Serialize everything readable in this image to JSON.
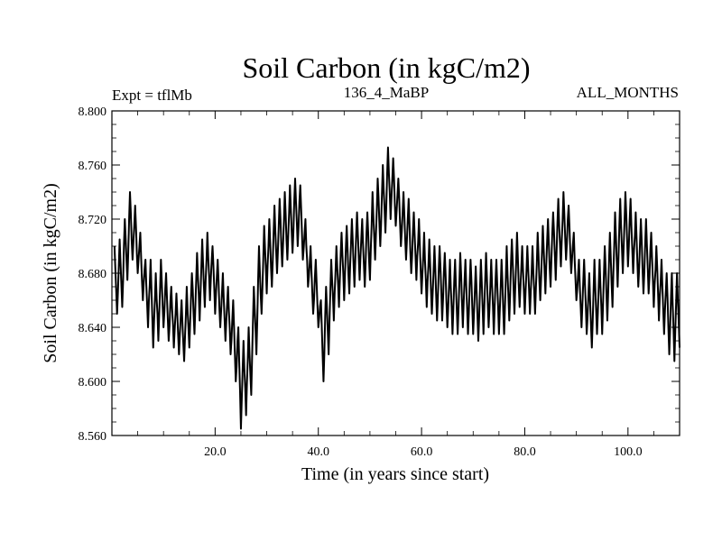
{
  "chart_data": {
    "type": "line",
    "title": "Soil Carbon (in kgC/m2)",
    "left_info": "Expt = tflMb",
    "center_info": "136_4_MaBP",
    "right_info": "ALL_MONTHS",
    "xlabel": "Time (in years since start)",
    "ylabel": "Soil Carbon (in kgC/m2)",
    "xlim": [
      0,
      110
    ],
    "ylim": [
      8.56,
      8.8
    ],
    "x_ticks": [
      20.0,
      40.0,
      60.0,
      80.0,
      100.0
    ],
    "x_tick_labels": [
      "20.0",
      "40.0",
      "60.0",
      "80.0",
      "100.0"
    ],
    "y_ticks": [
      8.56,
      8.6,
      8.64,
      8.68,
      8.72,
      8.76,
      8.8
    ],
    "y_tick_labels": [
      "8.560",
      "8.600",
      "8.640",
      "8.680",
      "8.720",
      "8.760",
      "8.800"
    ],
    "series": [
      {
        "name": "Soil Carbon",
        "color": "#000000",
        "annual_peaks": [
          [
            0.5,
            8.7
          ],
          [
            1.5,
            8.705
          ],
          [
            2.5,
            8.72
          ],
          [
            3.5,
            8.74
          ],
          [
            4.5,
            8.73
          ],
          [
            5.5,
            8.71
          ],
          [
            6.5,
            8.69
          ],
          [
            7.5,
            8.69
          ],
          [
            8.5,
            8.68
          ],
          [
            9.5,
            8.69
          ],
          [
            10.5,
            8.68
          ],
          [
            11.5,
            8.67
          ],
          [
            12.5,
            8.665
          ],
          [
            13.5,
            8.66
          ],
          [
            14.5,
            8.67
          ],
          [
            15.5,
            8.68
          ],
          [
            16.5,
            8.695
          ],
          [
            17.5,
            8.705
          ],
          [
            18.5,
            8.71
          ],
          [
            19.5,
            8.7
          ],
          [
            20.5,
            8.69
          ],
          [
            21.5,
            8.68
          ],
          [
            22.5,
            8.67
          ],
          [
            23.5,
            8.66
          ],
          [
            24.5,
            8.64
          ],
          [
            25.5,
            8.63
          ],
          [
            26.5,
            8.64
          ],
          [
            27.5,
            8.67
          ],
          [
            28.5,
            8.7
          ],
          [
            29.5,
            8.715
          ],
          [
            30.5,
            8.72
          ],
          [
            31.5,
            8.73
          ],
          [
            32.5,
            8.735
          ],
          [
            33.5,
            8.74
          ],
          [
            34.5,
            8.745
          ],
          [
            35.5,
            8.75
          ],
          [
            36.5,
            8.745
          ],
          [
            37.5,
            8.72
          ],
          [
            38.5,
            8.7
          ],
          [
            39.5,
            8.69
          ],
          [
            40.5,
            8.66
          ],
          [
            41.5,
            8.67
          ],
          [
            42.5,
            8.69
          ],
          [
            43.5,
            8.7
          ],
          [
            44.5,
            8.71
          ],
          [
            45.5,
            8.715
          ],
          [
            46.5,
            8.72
          ],
          [
            47.5,
            8.725
          ],
          [
            48.5,
            8.72
          ],
          [
            49.5,
            8.725
          ],
          [
            50.5,
            8.74
          ],
          [
            51.5,
            8.75
          ],
          [
            52.5,
            8.76
          ],
          [
            53.5,
            8.773
          ],
          [
            54.5,
            8.765
          ],
          [
            55.5,
            8.75
          ],
          [
            56.5,
            8.74
          ],
          [
            57.5,
            8.735
          ],
          [
            58.5,
            8.725
          ],
          [
            59.5,
            8.72
          ],
          [
            60.5,
            8.71
          ],
          [
            61.5,
            8.705
          ],
          [
            62.5,
            8.7
          ],
          [
            63.5,
            8.7
          ],
          [
            64.5,
            8.695
          ],
          [
            65.5,
            8.69
          ],
          [
            66.5,
            8.69
          ],
          [
            67.5,
            8.695
          ],
          [
            68.5,
            8.69
          ],
          [
            69.5,
            8.69
          ],
          [
            70.5,
            8.685
          ],
          [
            71.5,
            8.69
          ],
          [
            72.5,
            8.695
          ],
          [
            73.5,
            8.69
          ],
          [
            74.5,
            8.69
          ],
          [
            75.5,
            8.69
          ],
          [
            76.5,
            8.7
          ],
          [
            77.5,
            8.705
          ],
          [
            78.5,
            8.71
          ],
          [
            79.5,
            8.7
          ],
          [
            80.5,
            8.7
          ],
          [
            81.5,
            8.7
          ],
          [
            82.5,
            8.71
          ],
          [
            83.5,
            8.715
          ],
          [
            84.5,
            8.72
          ],
          [
            85.5,
            8.725
          ],
          [
            86.5,
            8.735
          ],
          [
            87.5,
            8.74
          ],
          [
            88.5,
            8.73
          ],
          [
            89.5,
            8.71
          ],
          [
            90.5,
            8.69
          ],
          [
            91.5,
            8.69
          ],
          [
            92.5,
            8.68
          ],
          [
            93.5,
            8.69
          ],
          [
            94.5,
            8.69
          ],
          [
            95.5,
            8.7
          ],
          [
            96.5,
            8.71
          ],
          [
            97.5,
            8.725
          ],
          [
            98.5,
            8.735
          ],
          [
            99.5,
            8.74
          ],
          [
            100.5,
            8.735
          ],
          [
            101.5,
            8.725
          ],
          [
            102.5,
            8.72
          ],
          [
            103.5,
            8.72
          ],
          [
            104.5,
            8.71
          ],
          [
            105.5,
            8.7
          ],
          [
            106.5,
            8.69
          ],
          [
            107.5,
            8.68
          ],
          [
            108.5,
            8.68
          ],
          [
            109.5,
            8.68
          ]
        ],
        "annual_troughs": [
          [
            1.0,
            8.65
          ],
          [
            2.0,
            8.655
          ],
          [
            3.0,
            8.675
          ],
          [
            4.0,
            8.69
          ],
          [
            5.0,
            8.68
          ],
          [
            6.0,
            8.66
          ],
          [
            7.0,
            8.64
          ],
          [
            8.0,
            8.625
          ],
          [
            9.0,
            8.63
          ],
          [
            10.0,
            8.64
          ],
          [
            11.0,
            8.63
          ],
          [
            12.0,
            8.625
          ],
          [
            13.0,
            8.62
          ],
          [
            14.0,
            8.615
          ],
          [
            15.0,
            8.625
          ],
          [
            16.0,
            8.635
          ],
          [
            17.0,
            8.645
          ],
          [
            18.0,
            8.655
          ],
          [
            19.0,
            8.66
          ],
          [
            20.0,
            8.65
          ],
          [
            21.0,
            8.64
          ],
          [
            22.0,
            8.63
          ],
          [
            23.0,
            8.62
          ],
          [
            24.0,
            8.6
          ],
          [
            25.0,
            8.565
          ],
          [
            26.0,
            8.575
          ],
          [
            27.0,
            8.59
          ],
          [
            28.0,
            8.62
          ],
          [
            29.0,
            8.65
          ],
          [
            30.0,
            8.665
          ],
          [
            31.0,
            8.67
          ],
          [
            32.0,
            8.68
          ],
          [
            33.0,
            8.685
          ],
          [
            34.0,
            8.69
          ],
          [
            35.0,
            8.695
          ],
          [
            36.0,
            8.7
          ],
          [
            37.0,
            8.69
          ],
          [
            38.0,
            8.67
          ],
          [
            39.0,
            8.65
          ],
          [
            40.0,
            8.64
          ],
          [
            41.0,
            8.6
          ],
          [
            42.0,
            8.62
          ],
          [
            43.0,
            8.645
          ],
          [
            44.0,
            8.655
          ],
          [
            45.0,
            8.66
          ],
          [
            46.0,
            8.665
          ],
          [
            47.0,
            8.67
          ],
          [
            48.0,
            8.675
          ],
          [
            49.0,
            8.67
          ],
          [
            50.0,
            8.675
          ],
          [
            51.0,
            8.69
          ],
          [
            52.0,
            8.7
          ],
          [
            53.0,
            8.71
          ],
          [
            54.0,
            8.72
          ],
          [
            55.0,
            8.715
          ],
          [
            56.0,
            8.7
          ],
          [
            57.0,
            8.69
          ],
          [
            58.0,
            8.68
          ],
          [
            59.0,
            8.675
          ],
          [
            60.0,
            8.665
          ],
          [
            61.0,
            8.655
          ],
          [
            62.0,
            8.65
          ],
          [
            63.0,
            8.645
          ],
          [
            64.0,
            8.645
          ],
          [
            65.0,
            8.64
          ],
          [
            66.0,
            8.635
          ],
          [
            67.0,
            8.635
          ],
          [
            68.0,
            8.64
          ],
          [
            69.0,
            8.635
          ],
          [
            70.0,
            8.635
          ],
          [
            71.0,
            8.63
          ],
          [
            72.0,
            8.635
          ],
          [
            73.0,
            8.64
          ],
          [
            74.0,
            8.635
          ],
          [
            75.0,
            8.635
          ],
          [
            76.0,
            8.635
          ],
          [
            77.0,
            8.645
          ],
          [
            78.0,
            8.65
          ],
          [
            79.0,
            8.655
          ],
          [
            80.0,
            8.65
          ],
          [
            81.0,
            8.65
          ],
          [
            82.0,
            8.65
          ],
          [
            83.0,
            8.66
          ],
          [
            84.0,
            8.665
          ],
          [
            85.0,
            8.67
          ],
          [
            86.0,
            8.675
          ],
          [
            87.0,
            8.685
          ],
          [
            88.0,
            8.69
          ],
          [
            89.0,
            8.68
          ],
          [
            90.0,
            8.66
          ],
          [
            91.0,
            8.64
          ],
          [
            92.0,
            8.635
          ],
          [
            93.0,
            8.625
          ],
          [
            94.0,
            8.635
          ],
          [
            95.0,
            8.635
          ],
          [
            96.0,
            8.645
          ],
          [
            97.0,
            8.655
          ],
          [
            98.0,
            8.67
          ],
          [
            99.0,
            8.68
          ],
          [
            100.0,
            8.685
          ],
          [
            101.0,
            8.68
          ],
          [
            102.0,
            8.67
          ],
          [
            103.0,
            8.665
          ],
          [
            104.0,
            8.665
          ],
          [
            105.0,
            8.655
          ],
          [
            106.0,
            8.645
          ],
          [
            107.0,
            8.635
          ],
          [
            108.0,
            8.62
          ],
          [
            109.0,
            8.615
          ],
          [
            110.0,
            8.625
          ]
        ]
      }
    ]
  }
}
